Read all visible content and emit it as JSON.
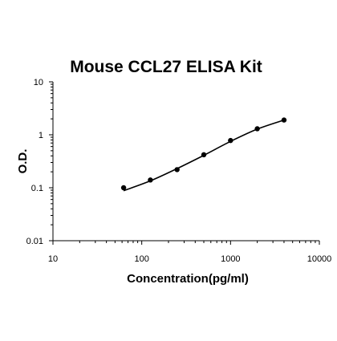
{
  "chart_data": {
    "type": "scatter",
    "title": "Mouse CCL27 ELISA Kit",
    "xlabel": "Concentration(pg/ml)",
    "ylabel": "O.D.",
    "x_scale": "log",
    "y_scale": "log",
    "xlim": [
      10,
      10000
    ],
    "ylim": [
      0.01,
      10
    ],
    "grid": false,
    "legend": "none",
    "x_ticks": [
      {
        "value": 10,
        "label": "10"
      },
      {
        "value": 100,
        "label": "100"
      },
      {
        "value": 1000,
        "label": "1000"
      },
      {
        "value": 10000,
        "label": "10000"
      }
    ],
    "y_ticks": [
      {
        "value": 0.01,
        "label": "0.01"
      },
      {
        "value": 0.1,
        "label": "0.1"
      },
      {
        "value": 1,
        "label": "1"
      },
      {
        "value": 10,
        "label": "10"
      }
    ],
    "series": [
      {
        "points": [
          {
            "x": 62.5,
            "y": 0.1
          },
          {
            "x": 125,
            "y": 0.14
          },
          {
            "x": 250,
            "y": 0.22
          },
          {
            "x": 500,
            "y": 0.42
          },
          {
            "x": 1000,
            "y": 0.78
          },
          {
            "x": 2000,
            "y": 1.3
          },
          {
            "x": 4000,
            "y": 1.9
          }
        ],
        "fit_curve": [
          {
            "x": 62.5,
            "y": 0.088
          },
          {
            "x": 125,
            "y": 0.135
          },
          {
            "x": 250,
            "y": 0.23
          },
          {
            "x": 500,
            "y": 0.41
          },
          {
            "x": 1000,
            "y": 0.75
          },
          {
            "x": 2000,
            "y": 1.28
          },
          {
            "x": 4000,
            "y": 1.9
          }
        ],
        "color": "#000000"
      }
    ]
  }
}
